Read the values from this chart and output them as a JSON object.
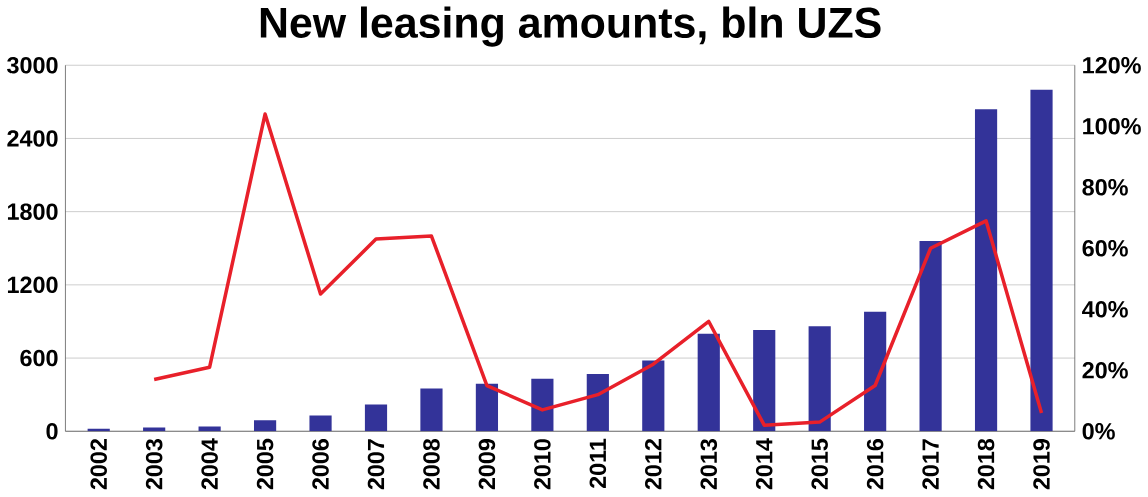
{
  "chart_data": {
    "type": "bar",
    "title": "New leasing amounts, bln UZS",
    "categories": [
      "2002",
      "2003",
      "2004",
      "2005",
      "2006",
      "2007",
      "2008",
      "2009",
      "2010",
      "2011",
      "2012",
      "2013",
      "2014",
      "2015",
      "2016",
      "2017",
      "2018",
      "2019"
    ],
    "series": [
      {
        "color": "#333399",
        "values": [
          20,
          30,
          40,
          90,
          130,
          220,
          350,
          390,
          430,
          470,
          580,
          800,
          830,
          860,
          980,
          1560,
          2640,
          2800
        ]
      },
      {
        "type": "line",
        "axis": "y2",
        "color": "#e8202a",
        "values": [
          null,
          17,
          21,
          104,
          45,
          63,
          64,
          15,
          7,
          12,
          22,
          36,
          2,
          3,
          15,
          60,
          69,
          6
        ]
      }
    ],
    "ylim": [
      0,
      3000
    ],
    "yticks": [
      0,
      600,
      1200,
      1800,
      2400,
      3000
    ],
    "y2lim": [
      0,
      120
    ],
    "y2ticks": [
      {
        "value": 0,
        "label": "0%"
      },
      {
        "value": 20,
        "label": "20%"
      },
      {
        "value": 40,
        "label": "40%"
      },
      {
        "value": 60,
        "label": "60%"
      },
      {
        "value": 80,
        "label": "80%"
      },
      {
        "value": 100,
        "label": "100%"
      },
      {
        "value": 120,
        "label": "120%"
      }
    ],
    "grid": "y",
    "legend": false,
    "marker": "none",
    "line_style": "solid"
  }
}
